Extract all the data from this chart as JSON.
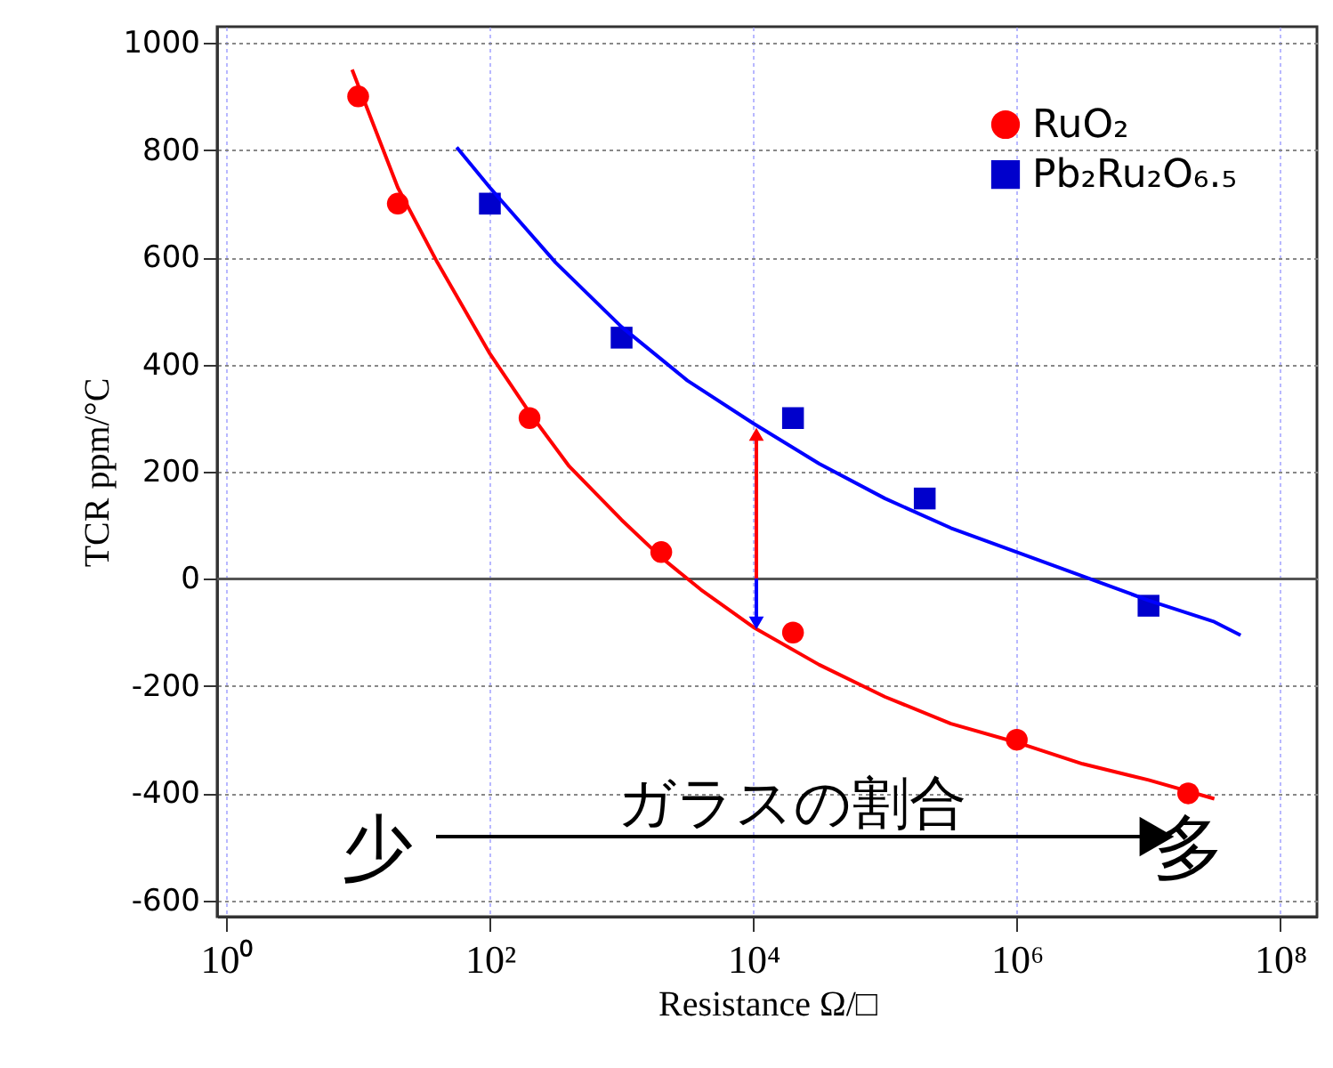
{
  "chart_data": {
    "type": "scatter",
    "xlabel": "Resistance Ω/□",
    "ylabel": "TCR ppm/°C",
    "xlim": [
      0.85,
      190000000
    ],
    "ylim": [
      -630,
      1030
    ],
    "xticks": [
      {
        "value": 1,
        "label": "10⁰"
      },
      {
        "value": 100,
        "label": "10²"
      },
      {
        "value": 10000,
        "label": "10⁴"
      },
      {
        "value": 1000000,
        "label": "10⁶"
      },
      {
        "value": 100000000,
        "label": "10⁸"
      }
    ],
    "yticks": [
      -600,
      -400,
      -200,
      0,
      200,
      400,
      600,
      800,
      1000
    ],
    "log": "x",
    "grid": true,
    "legend": "top right",
    "ref_lines": [
      {
        "axis": "y",
        "value": 0,
        "color": "#555555"
      }
    ],
    "series": [
      {
        "name": "RuO₂",
        "marker": "circle",
        "color": "#ff0000",
        "x": [
          10,
          20,
          200,
          2000,
          20000,
          1000000,
          20000000
        ],
        "values": [
          900,
          700,
          300,
          50,
          -100,
          -300,
          -400
        ]
      },
      {
        "name": "Pb₂Ru₂O₆.₅",
        "marker": "square",
        "color": "#0000cc",
        "x": [
          100,
          1000,
          20000,
          200000,
          10000000
        ],
        "values": [
          700,
          450,
          300,
          150,
          -50
        ]
      },
      {
        "type": "line",
        "color": "#ff0000",
        "x": [
          9,
          20,
          40,
          100,
          200,
          400,
          1000,
          2000,
          4000,
          10000,
          31600,
          100000,
          316000,
          1000000,
          3160000,
          10000000,
          31600000
        ],
        "values": [
          950,
          730,
          590,
          420,
          310,
          210,
          110,
          40,
          -20,
          -90,
          -160,
          -220,
          -270,
          -305,
          -345,
          -375,
          -410
        ]
      },
      {
        "type": "line",
        "color": "#0000ff",
        "x": [
          56,
          100,
          316,
          1000,
          3160,
          10000,
          31600,
          100000,
          316000,
          1000000,
          3160000,
          10000000,
          31600000,
          50000000
        ],
        "values": [
          805,
          730,
          590,
          470,
          370,
          290,
          215,
          150,
          95,
          50,
          5,
          -40,
          -80,
          -105
        ]
      }
    ],
    "annotations": [
      "少",
      "ガラスの割合",
      "多"
    ]
  }
}
